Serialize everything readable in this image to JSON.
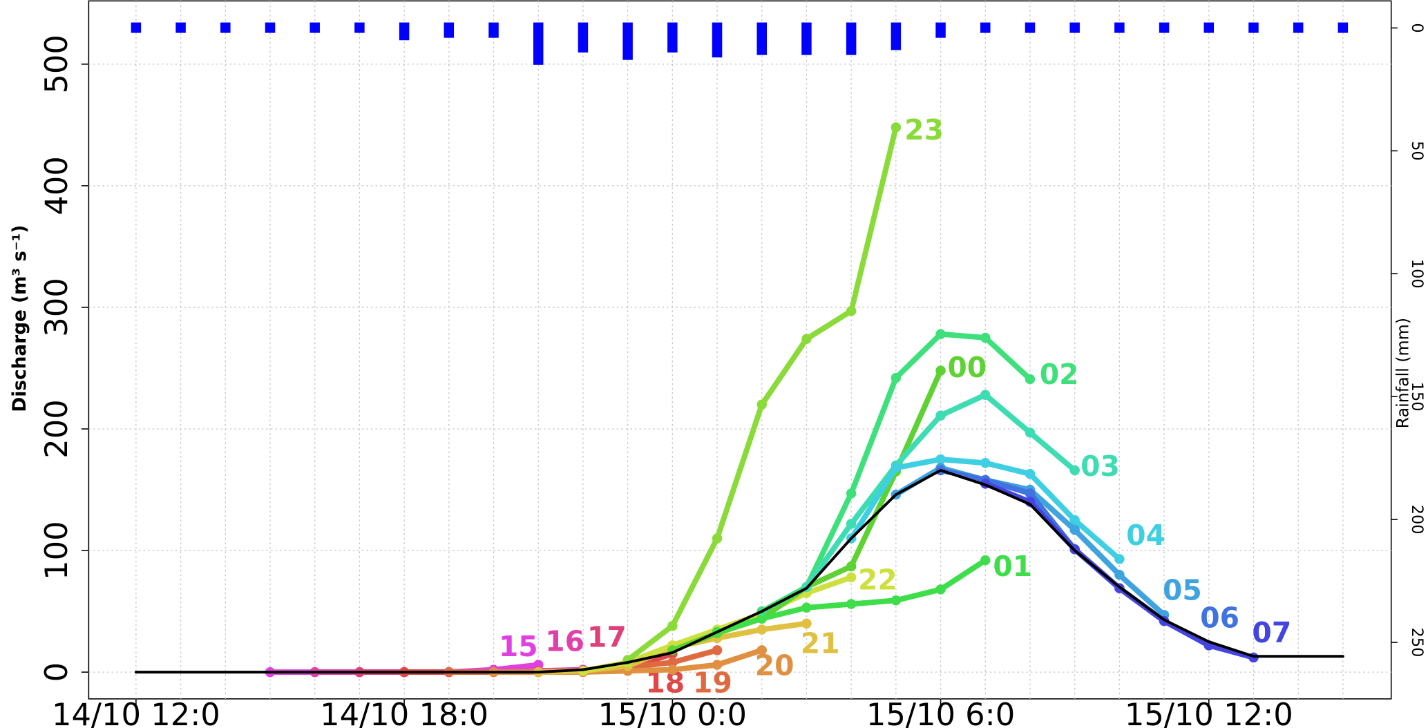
{
  "chart_data": {
    "type": "line",
    "y_label": "Discharge (m³ s⁻¹)",
    "y2_label": "Rainfall (mm)",
    "categories": [
      "14/10 12:0",
      null,
      null,
      null,
      null,
      null,
      "14/10 18:0",
      null,
      null,
      null,
      null,
      null,
      "15/10 0:0",
      null,
      null,
      null,
      null,
      null,
      "15/10 6:0",
      null,
      null,
      null,
      null,
      null,
      "15/10 12:0",
      null,
      null,
      null
    ],
    "ylim": [
      -22,
      552
    ],
    "yticks": [
      0,
      100,
      200,
      300,
      400,
      500
    ],
    "y2lim": [
      -11,
      273
    ],
    "y2ticks": [
      0,
      50,
      100,
      150,
      200,
      250
    ],
    "y2_inverted": true,
    "grid": true,
    "series": [
      {
        "name": "15",
        "color": "#e040e0",
        "values": [
          null,
          null,
          null,
          0,
          0,
          0,
          0,
          0,
          2,
          6,
          null,
          null,
          null,
          null,
          null,
          null,
          null,
          null,
          null,
          null,
          null,
          null,
          null,
          null,
          null,
          null,
          null,
          null
        ]
      },
      {
        "name": "16",
        "color": "#e040a8",
        "values": [
          null,
          null,
          null,
          null,
          0,
          0,
          0,
          0,
          0,
          1,
          2,
          null,
          null,
          null,
          null,
          null,
          null,
          null,
          null,
          null,
          null,
          null,
          null,
          null,
          null,
          null,
          null,
          null
        ]
      },
      {
        "name": "17",
        "color": "#e0407a",
        "values": [
          null,
          null,
          null,
          null,
          null,
          0,
          0,
          0,
          0,
          0,
          1,
          3,
          null,
          null,
          null,
          null,
          null,
          null,
          null,
          null,
          null,
          null,
          null,
          null,
          null,
          null,
          null,
          null
        ]
      },
      {
        "name": "18",
        "color": "#e04848",
        "values": [
          null,
          null,
          null,
          null,
          null,
          null,
          0,
          0,
          0,
          0,
          1,
          3,
          15,
          null,
          null,
          null,
          null,
          null,
          null,
          null,
          null,
          null,
          null,
          null,
          null,
          null,
          null,
          null
        ]
      },
      {
        "name": "19",
        "color": "#e06a40",
        "values": [
          null,
          null,
          null,
          null,
          null,
          null,
          null,
          0,
          0,
          0,
          1,
          4,
          8,
          18,
          null,
          null,
          null,
          null,
          null,
          null,
          null,
          null,
          null,
          null,
          null,
          null,
          null,
          null
        ]
      },
      {
        "name": "20",
        "color": "#e09040",
        "values": [
          null,
          null,
          null,
          null,
          null,
          null,
          null,
          null,
          0,
          0,
          0,
          1,
          2,
          6,
          18,
          null,
          null,
          null,
          null,
          null,
          null,
          null,
          null,
          null,
          null,
          null,
          null,
          null
        ]
      },
      {
        "name": "21",
        "color": "#e0c040",
        "values": [
          null,
          null,
          null,
          null,
          null,
          null,
          null,
          null,
          null,
          0,
          1,
          5,
          20,
          28,
          35,
          40,
          null,
          null,
          null,
          null,
          null,
          null,
          null,
          null,
          null,
          null,
          null,
          null
        ]
      },
      {
        "name": "22",
        "color": "#cee040",
        "values": [
          null,
          null,
          null,
          null,
          null,
          null,
          null,
          null,
          null,
          null,
          1,
          8,
          22,
          35,
          48,
          65,
          78,
          null,
          null,
          null,
          null,
          null,
          null,
          null,
          null,
          null,
          null,
          null
        ]
      },
      {
        "name": "23",
        "color": "#8ada3a",
        "values": [
          null,
          null,
          null,
          null,
          null,
          null,
          null,
          null,
          null,
          null,
          null,
          10,
          38,
          110,
          220,
          274,
          297,
          448,
          null,
          null,
          null,
          null,
          null,
          null,
          null,
          null,
          null,
          null
        ]
      },
      {
        "name": "00",
        "color": "#5ed232",
        "values": [
          null,
          null,
          null,
          null,
          null,
          null,
          null,
          null,
          null,
          null,
          null,
          null,
          18,
          32,
          44,
          70,
          87,
          165,
          248,
          null,
          null,
          null,
          null,
          null,
          null,
          null,
          null,
          null
        ]
      },
      {
        "name": "01",
        "color": "#3ede4a",
        "values": [
          null,
          null,
          null,
          null,
          null,
          null,
          null,
          null,
          null,
          null,
          null,
          null,
          null,
          33,
          44,
          53,
          56,
          59,
          68,
          92,
          null,
          null,
          null,
          null,
          null,
          null,
          null,
          null
        ]
      },
      {
        "name": "02",
        "color": "#3ee07c",
        "values": [
          null,
          null,
          null,
          null,
          null,
          null,
          null,
          null,
          null,
          null,
          null,
          null,
          null,
          null,
          50,
          70,
          147,
          242,
          278,
          275,
          241,
          null,
          null,
          null,
          null,
          null,
          null,
          null
        ]
      },
      {
        "name": "03",
        "color": "#3edcb2",
        "values": [
          null,
          null,
          null,
          null,
          null,
          null,
          null,
          null,
          null,
          null,
          null,
          null,
          null,
          null,
          null,
          70,
          122,
          170,
          211,
          228,
          197,
          166,
          null,
          null,
          null,
          null,
          null,
          null
        ]
      },
      {
        "name": "04",
        "color": "#3fcfe2",
        "values": [
          null,
          null,
          null,
          null,
          null,
          null,
          null,
          null,
          null,
          null,
          null,
          null,
          null,
          null,
          null,
          null,
          110,
          168,
          175,
          172,
          163,
          125,
          93,
          null,
          null,
          null,
          null,
          null
        ]
      },
      {
        "name": "05",
        "color": "#3fa3e0",
        "values": [
          null,
          null,
          null,
          null,
          null,
          null,
          null,
          null,
          null,
          null,
          null,
          null,
          null,
          null,
          null,
          null,
          null,
          146,
          168,
          158,
          150,
          117,
          80,
          47,
          null,
          null,
          null,
          null
        ]
      },
      {
        "name": "06",
        "color": "#4072e0",
        "values": [
          null,
          null,
          null,
          null,
          null,
          null,
          null,
          null,
          null,
          null,
          null,
          null,
          null,
          null,
          null,
          null,
          null,
          null,
          166,
          158,
          147,
          101,
          69,
          42,
          22,
          null,
          null,
          null
        ]
      },
      {
        "name": "07",
        "color": "#4444e0",
        "values": [
          null,
          null,
          null,
          null,
          null,
          null,
          null,
          null,
          null,
          null,
          null,
          null,
          null,
          null,
          null,
          null,
          null,
          null,
          null,
          155,
          140,
          101,
          69,
          42,
          22,
          12,
          null,
          null
        ]
      },
      {
        "color": "#000000",
        "values": [
          0,
          0,
          0,
          0,
          0,
          0,
          0,
          0,
          0,
          0,
          2,
          8,
          16,
          33,
          50,
          69,
          110,
          146,
          166,
          154,
          138,
          100,
          70,
          43,
          25,
          13,
          13,
          13
        ]
      },
      {
        "type": "bar",
        "axis": "y2",
        "color": "#0000ff",
        "values": [
          2,
          2,
          2,
          2,
          2,
          2,
          5,
          4,
          4,
          15,
          10,
          13,
          10,
          12,
          11,
          11,
          11,
          9,
          4,
          2,
          2,
          2,
          2,
          2,
          2,
          2,
          2,
          2
        ]
      }
    ]
  }
}
